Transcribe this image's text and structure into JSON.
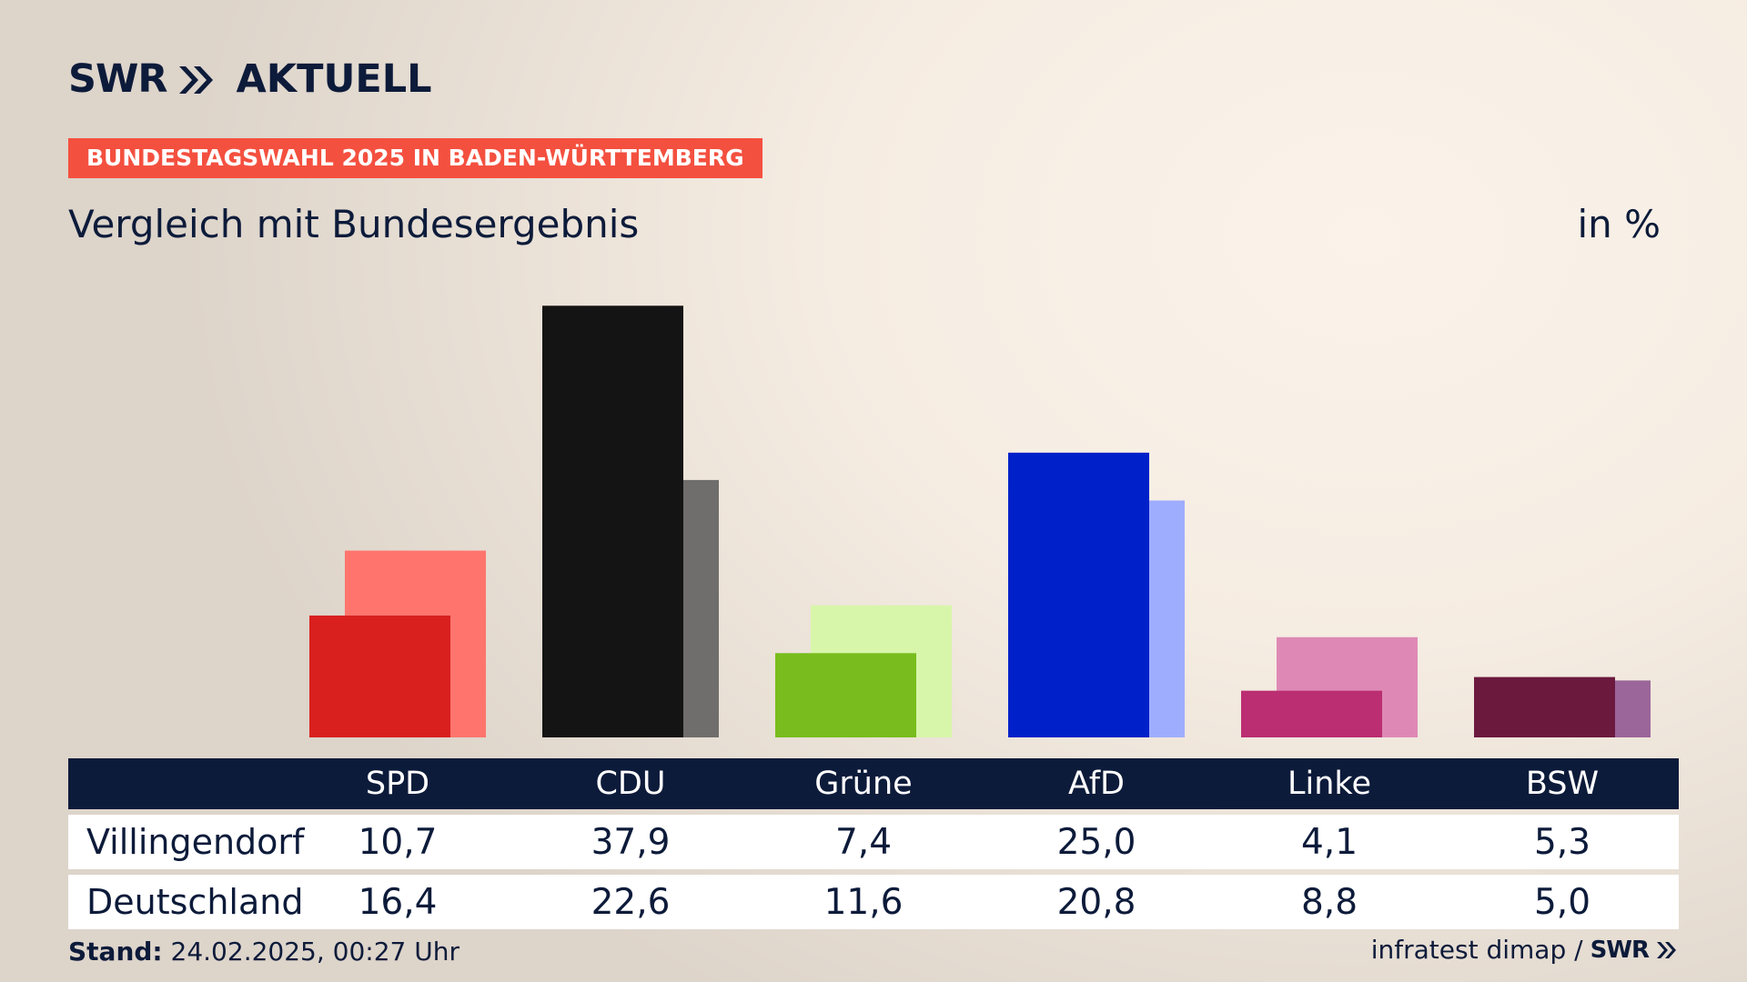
{
  "brand": {
    "swr": "SWR",
    "aktuell": "AKTUELL"
  },
  "tag": "BUNDESTAGSWAHL 2025 IN BADEN-WÜRTTEMBERG",
  "subtitle": "Vergleich mit Bundesergebnis",
  "unit": "in %",
  "footer": {
    "stand_label": "Stand:",
    "stand_value": "24.02.2025, 00:27 Uhr",
    "source": "infratest dimap /",
    "source_brand": "SWR"
  },
  "chart_data": {
    "type": "bar",
    "categories": [
      "SPD",
      "CDU",
      "Grüne",
      "AfD",
      "Linke",
      "BSW"
    ],
    "series": [
      {
        "name": "Villingendorf",
        "values": [
          10.7,
          37.9,
          7.4,
          25.0,
          4.1,
          5.3
        ],
        "labels": [
          "10,7",
          "37,9",
          "7,4",
          "25,0",
          "4,1",
          "5,3"
        ]
      },
      {
        "name": "Deutschland",
        "values": [
          16.4,
          22.6,
          11.6,
          20.8,
          8.8,
          5.0
        ],
        "labels": [
          "16,4",
          "22,6",
          "11,6",
          "20,8",
          "8,8",
          "5,0"
        ]
      }
    ],
    "colors": {
      "primary": [
        "#d9201f",
        "#141414",
        "#78bd1d",
        "#0021c9",
        "#bb2e72",
        "#6b1a3e"
      ],
      "secondary": [
        "#ff756d",
        "#6f6e6c",
        "#d8f6aa",
        "#9fadff",
        "#de89b5",
        "#9b6699"
      ]
    },
    "ylim": [
      0,
      38
    ]
  }
}
